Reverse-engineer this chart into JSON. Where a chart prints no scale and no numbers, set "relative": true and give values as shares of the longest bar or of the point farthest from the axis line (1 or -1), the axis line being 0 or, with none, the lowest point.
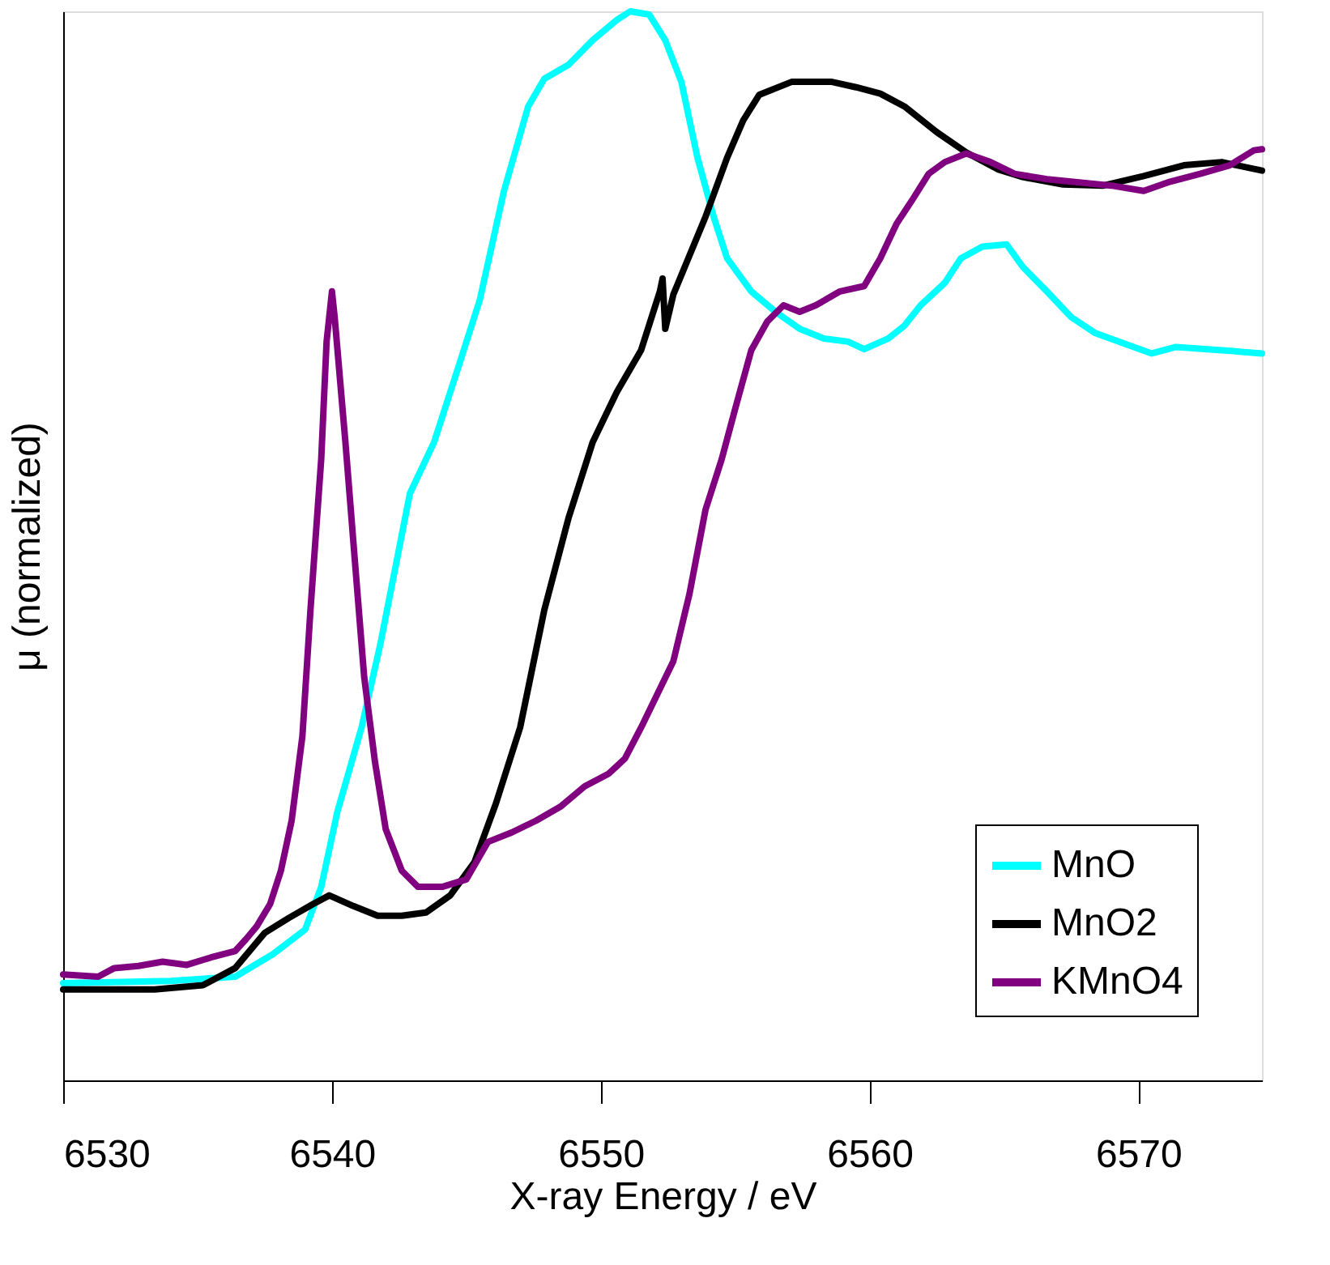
{
  "chart_data": {
    "type": "line",
    "relative": true,
    "xlabel": "X-ray Energy / eV",
    "ylabel": "μ (normalized)",
    "xlim": [
      6530,
      6574.6
    ],
    "xticks": [
      6530,
      6540,
      6550,
      6560,
      6570
    ],
    "grid": false,
    "legend": "bottom right",
    "line_style": "solid",
    "marker": "none",
    "series": [
      {
        "name": "MnO",
        "color": "#00ffff",
        "x": [
          6530,
          6534.0,
          6536.4,
          6537.8,
          6539.0,
          6539.6,
          6540.2,
          6541.1,
          6541.8,
          6542.9,
          6543.8,
          6544.7,
          6545.5,
          6546.4,
          6547.3,
          6547.9,
          6548.8,
          6549.7,
          6550.6,
          6551.1,
          6551.8,
          6552.4,
          6553.0,
          6553.6,
          6554.2,
          6554.7,
          6555.6,
          6556.5,
          6557.4,
          6558.3,
          6559.2,
          6559.8,
          6560.7,
          6561.3,
          6561.9,
          6562.8,
          6563.4,
          6564.2,
          6565.1,
          6565.7,
          6566.6,
          6567.5,
          6568.4,
          6569.6,
          6570.5,
          6571.4,
          6573.1,
          6574.6
        ],
        "values": [
          0.091,
          0.093,
          0.097,
          0.118,
          0.141,
          0.181,
          0.251,
          0.33,
          0.408,
          0.549,
          0.597,
          0.667,
          0.73,
          0.832,
          0.911,
          0.937,
          0.95,
          0.973,
          0.992,
          1.0,
          0.997,
          0.973,
          0.934,
          0.863,
          0.808,
          0.769,
          0.738,
          0.719,
          0.703,
          0.694,
          0.691,
          0.684,
          0.694,
          0.706,
          0.725,
          0.746,
          0.769,
          0.78,
          0.782,
          0.761,
          0.738,
          0.714,
          0.699,
          0.688,
          0.68,
          0.686,
          0.683,
          0.68
        ]
      },
      {
        "name": "MnO2",
        "color": "#000000",
        "x": [
          6530,
          6533.4,
          6535.2,
          6536.4,
          6537.5,
          6538.4,
          6539.3,
          6539.9,
          6540.8,
          6541.7,
          6542.6,
          6543.5,
          6544.4,
          6545.3,
          6546.1,
          6547.0,
          6547.9,
          6548.8,
          6549.7,
          6550.6,
          6551.5,
          6552.2,
          6552.3,
          6552.4,
          6552.7,
          6553.9,
          6554.7,
          6555.3,
          6555.9,
          6557.1,
          6558.6,
          6559.5,
          6560.4,
          6561.3,
          6562.5,
          6563.6,
          6564.8,
          6565.7,
          6567.2,
          6568.7,
          6570.2,
          6571.7,
          6573.1,
          6574.6
        ],
        "values": [
          0.085,
          0.085,
          0.089,
          0.105,
          0.138,
          0.152,
          0.165,
          0.173,
          0.163,
          0.154,
          0.154,
          0.157,
          0.173,
          0.204,
          0.259,
          0.33,
          0.44,
          0.526,
          0.597,
          0.644,
          0.683,
          0.738,
          0.75,
          0.703,
          0.735,
          0.808,
          0.863,
          0.898,
          0.922,
          0.934,
          0.934,
          0.929,
          0.923,
          0.911,
          0.887,
          0.868,
          0.852,
          0.845,
          0.838,
          0.837,
          0.846,
          0.856,
          0.859,
          0.851
        ]
      },
      {
        "name": "KMnO4",
        "color": "#800080",
        "x": [
          6530,
          6531.3,
          6531.9,
          6532.8,
          6533.7,
          6534.6,
          6535.5,
          6536.4,
          6536.8,
          6537.2,
          6537.7,
          6538.1,
          6538.5,
          6538.9,
          6539.2,
          6539.6,
          6539.8,
          6540.0,
          6540.1,
          6540.5,
          6540.9,
          6541.2,
          6541.6,
          6542.0,
          6542.6,
          6543.2,
          6544.1,
          6545.0,
          6545.8,
          6546.7,
          6547.6,
          6548.5,
          6549.4,
          6550.3,
          6550.9,
          6551.5,
          6552.1,
          6552.7,
          6553.3,
          6553.9,
          6554.5,
          6555.0,
          6555.6,
          6556.2,
          6556.8,
          6557.4,
          6558.0,
          6558.9,
          6559.8,
          6560.4,
          6561.0,
          6561.6,
          6562.2,
          6562.8,
          6563.6,
          6564.5,
          6565.4,
          6566.6,
          6567.8,
          6569.0,
          6570.2,
          6571.1,
          6572.3,
          6573.4,
          6574.3,
          6574.6
        ],
        "values": [
          0.099,
          0.097,
          0.105,
          0.107,
          0.111,
          0.108,
          0.115,
          0.121,
          0.132,
          0.144,
          0.165,
          0.196,
          0.243,
          0.322,
          0.44,
          0.581,
          0.691,
          0.738,
          0.714,
          0.597,
          0.471,
          0.377,
          0.298,
          0.235,
          0.196,
          0.181,
          0.181,
          0.188,
          0.223,
          0.232,
          0.243,
          0.256,
          0.275,
          0.287,
          0.301,
          0.33,
          0.361,
          0.392,
          0.455,
          0.534,
          0.581,
          0.628,
          0.683,
          0.71,
          0.725,
          0.719,
          0.725,
          0.738,
          0.743,
          0.769,
          0.801,
          0.824,
          0.848,
          0.859,
          0.867,
          0.859,
          0.848,
          0.843,
          0.84,
          0.837,
          0.832,
          0.84,
          0.848,
          0.856,
          0.87,
          0.871
        ]
      }
    ]
  }
}
